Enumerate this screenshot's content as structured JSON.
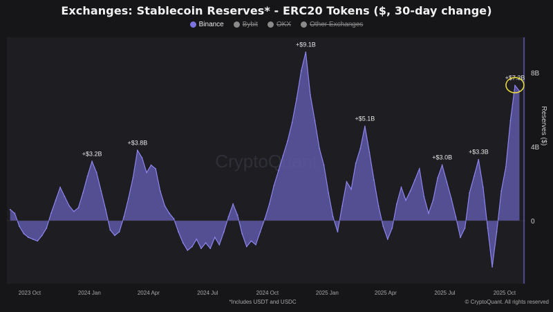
{
  "page": {
    "title": "Exchanges: Stablecoin Reserves* - ERC20 Tokens ($, 30-day change)",
    "footnote": "*Includes USDT and USDC",
    "credit": "© CryptoQuant. All rights reserved",
    "watermark": "CryptoQuant"
  },
  "legend": [
    {
      "label": "Binance",
      "active": true,
      "color": "#7b74e0"
    },
    {
      "label": "Bybit",
      "active": false,
      "color": "#8a8a8a"
    },
    {
      "label": "OKX",
      "active": false,
      "color": "#8a8a8a"
    },
    {
      "label": "Other Exchanges",
      "active": false,
      "color": "#8a8a8a"
    }
  ],
  "colors": {
    "background": "#161618",
    "plot_background": "#1d1d22",
    "area_fill": "#5d58a6",
    "area_line": "#8d86ee",
    "highlight": "#e8d83a",
    "grid": "#2a2a30"
  },
  "chart_data": {
    "type": "area",
    "title": "Exchanges: Stablecoin Reserves* - ERC20 Tokens ($, 30-day change)",
    "ylabel": "Reserves ($)",
    "xlabel": "",
    "unit": "$ billions",
    "ylim": [
      -3.4,
      9.9
    ],
    "grid": false,
    "legend_position": "top-center",
    "y_ticks": [
      {
        "value": 0,
        "label": "0"
      },
      {
        "value": 4,
        "label": "4B"
      },
      {
        "value": 8,
        "label": "8B"
      }
    ],
    "x_ticks": [
      {
        "date": "2023-10-01",
        "label": "2023 Oct"
      },
      {
        "date": "2024-01-01",
        "label": "2024 Jan"
      },
      {
        "date": "2024-04-01",
        "label": "2024 Apr"
      },
      {
        "date": "2024-07-01",
        "label": "2024 Jul"
      },
      {
        "date": "2024-10-01",
        "label": "2024 Oct"
      },
      {
        "date": "2025-01-01",
        "label": "2025 Jan"
      },
      {
        "date": "2025-04-01",
        "label": "2025 Apr"
      },
      {
        "date": "2025-07-01",
        "label": "2025 Jul"
      },
      {
        "date": "2025-10-01",
        "label": "2025 Oct"
      }
    ],
    "series": [
      {
        "name": "Binance",
        "points": [
          [
            "2023-09-01",
            0.6
          ],
          [
            "2023-09-08",
            0.4
          ],
          [
            "2023-09-15",
            -0.3
          ],
          [
            "2023-09-22",
            -0.7
          ],
          [
            "2023-09-29",
            -0.9
          ],
          [
            "2023-10-06",
            -1.0
          ],
          [
            "2023-10-13",
            -1.1
          ],
          [
            "2023-10-20",
            -0.8
          ],
          [
            "2023-10-27",
            -0.4
          ],
          [
            "2023-11-03",
            0.4
          ],
          [
            "2023-11-10",
            1.1
          ],
          [
            "2023-11-17",
            1.8
          ],
          [
            "2023-11-24",
            1.3
          ],
          [
            "2023-12-01",
            0.8
          ],
          [
            "2023-12-08",
            0.5
          ],
          [
            "2023-12-15",
            0.7
          ],
          [
            "2023-12-22",
            1.5
          ],
          [
            "2023-12-29",
            2.4
          ],
          [
            "2024-01-05",
            3.2
          ],
          [
            "2024-01-12",
            2.6
          ],
          [
            "2024-01-19",
            1.6
          ],
          [
            "2024-01-26",
            0.6
          ],
          [
            "2024-02-02",
            -0.5
          ],
          [
            "2024-02-09",
            -0.8
          ],
          [
            "2024-02-16",
            -0.6
          ],
          [
            "2024-02-23",
            0.2
          ],
          [
            "2024-03-01",
            1.2
          ],
          [
            "2024-03-08",
            2.3
          ],
          [
            "2024-03-15",
            3.8
          ],
          [
            "2024-03-22",
            3.4
          ],
          [
            "2024-03-29",
            2.6
          ],
          [
            "2024-04-05",
            3.0
          ],
          [
            "2024-04-12",
            2.8
          ],
          [
            "2024-04-19",
            1.6
          ],
          [
            "2024-04-26",
            0.8
          ],
          [
            "2024-05-03",
            0.4
          ],
          [
            "2024-05-10",
            0.1
          ],
          [
            "2024-05-17",
            -0.6
          ],
          [
            "2024-05-24",
            -1.2
          ],
          [
            "2024-05-31",
            -1.6
          ],
          [
            "2024-06-07",
            -1.4
          ],
          [
            "2024-06-14",
            -1.0
          ],
          [
            "2024-06-21",
            -1.5
          ],
          [
            "2024-06-28",
            -1.2
          ],
          [
            "2024-07-05",
            -1.5
          ],
          [
            "2024-07-12",
            -0.9
          ],
          [
            "2024-07-19",
            -1.3
          ],
          [
            "2024-07-26",
            -0.6
          ],
          [
            "2024-08-02",
            0.2
          ],
          [
            "2024-08-09",
            0.9
          ],
          [
            "2024-08-16",
            0.3
          ],
          [
            "2024-08-23",
            -0.7
          ],
          [
            "2024-08-30",
            -1.4
          ],
          [
            "2024-09-06",
            -1.1
          ],
          [
            "2024-09-13",
            -1.3
          ],
          [
            "2024-09-20",
            -0.6
          ],
          [
            "2024-09-27",
            0.1
          ],
          [
            "2024-10-04",
            0.9
          ],
          [
            "2024-10-11",
            1.9
          ],
          [
            "2024-10-18",
            2.7
          ],
          [
            "2024-10-25",
            3.5
          ],
          [
            "2024-11-01",
            4.3
          ],
          [
            "2024-11-08",
            5.3
          ],
          [
            "2024-11-15",
            6.6
          ],
          [
            "2024-11-22",
            8.1
          ],
          [
            "2024-11-29",
            9.1
          ],
          [
            "2024-12-06",
            6.8
          ],
          [
            "2024-12-13",
            5.4
          ],
          [
            "2024-12-20",
            3.9
          ],
          [
            "2024-12-27",
            3.0
          ],
          [
            "2025-01-03",
            1.5
          ],
          [
            "2025-01-10",
            0.2
          ],
          [
            "2025-01-17",
            -0.6
          ],
          [
            "2025-01-24",
            0.8
          ],
          [
            "2025-01-31",
            2.1
          ],
          [
            "2025-02-07",
            1.7
          ],
          [
            "2025-02-14",
            3.1
          ],
          [
            "2025-02-21",
            3.9
          ],
          [
            "2025-02-28",
            5.1
          ],
          [
            "2025-03-07",
            3.7
          ],
          [
            "2025-03-14",
            2.2
          ],
          [
            "2025-03-21",
            0.8
          ],
          [
            "2025-03-28",
            -0.3
          ],
          [
            "2025-04-04",
            -1.0
          ],
          [
            "2025-04-11",
            -0.4
          ],
          [
            "2025-04-18",
            0.9
          ],
          [
            "2025-04-25",
            1.8
          ],
          [
            "2025-05-02",
            1.1
          ],
          [
            "2025-05-09",
            1.6
          ],
          [
            "2025-05-16",
            2.2
          ],
          [
            "2025-05-23",
            2.8
          ],
          [
            "2025-05-30",
            1.3
          ],
          [
            "2025-06-06",
            0.4
          ],
          [
            "2025-06-13",
            1.1
          ],
          [
            "2025-06-20",
            2.3
          ],
          [
            "2025-06-27",
            3.0
          ],
          [
            "2025-07-04",
            2.1
          ],
          [
            "2025-07-11",
            1.2
          ],
          [
            "2025-07-18",
            0.2
          ],
          [
            "2025-07-25",
            -0.9
          ],
          [
            "2025-08-01",
            -0.4
          ],
          [
            "2025-08-08",
            1.5
          ],
          [
            "2025-08-15",
            2.4
          ],
          [
            "2025-08-22",
            3.3
          ],
          [
            "2025-08-29",
            1.8
          ],
          [
            "2025-09-05",
            -0.4
          ],
          [
            "2025-09-12",
            -2.5
          ],
          [
            "2025-09-19",
            -0.6
          ],
          [
            "2025-09-26",
            1.6
          ],
          [
            "2025-10-03",
            2.9
          ],
          [
            "2025-10-10",
            5.4
          ],
          [
            "2025-10-17",
            7.3
          ],
          [
            "2025-10-24",
            7.0
          ]
        ]
      }
    ],
    "annotations": [
      {
        "date": "2024-01-05",
        "value": 3.2,
        "label": "+$3.2B"
      },
      {
        "date": "2024-03-15",
        "value": 3.8,
        "label": "+$3.8B"
      },
      {
        "date": "2024-11-29",
        "value": 9.1,
        "label": "+$9.1B"
      },
      {
        "date": "2025-02-28",
        "value": 5.1,
        "label": "+$5.1B"
      },
      {
        "date": "2025-06-27",
        "value": 3.0,
        "label": "+$3.0B"
      },
      {
        "date": "2025-08-22",
        "value": 3.3,
        "label": "+$3.3B"
      },
      {
        "date": "2025-10-17",
        "value": 7.3,
        "label": "+$7.3B"
      }
    ],
    "highlighted_point": {
      "date": "2025-10-17",
      "value": 7.3
    }
  }
}
